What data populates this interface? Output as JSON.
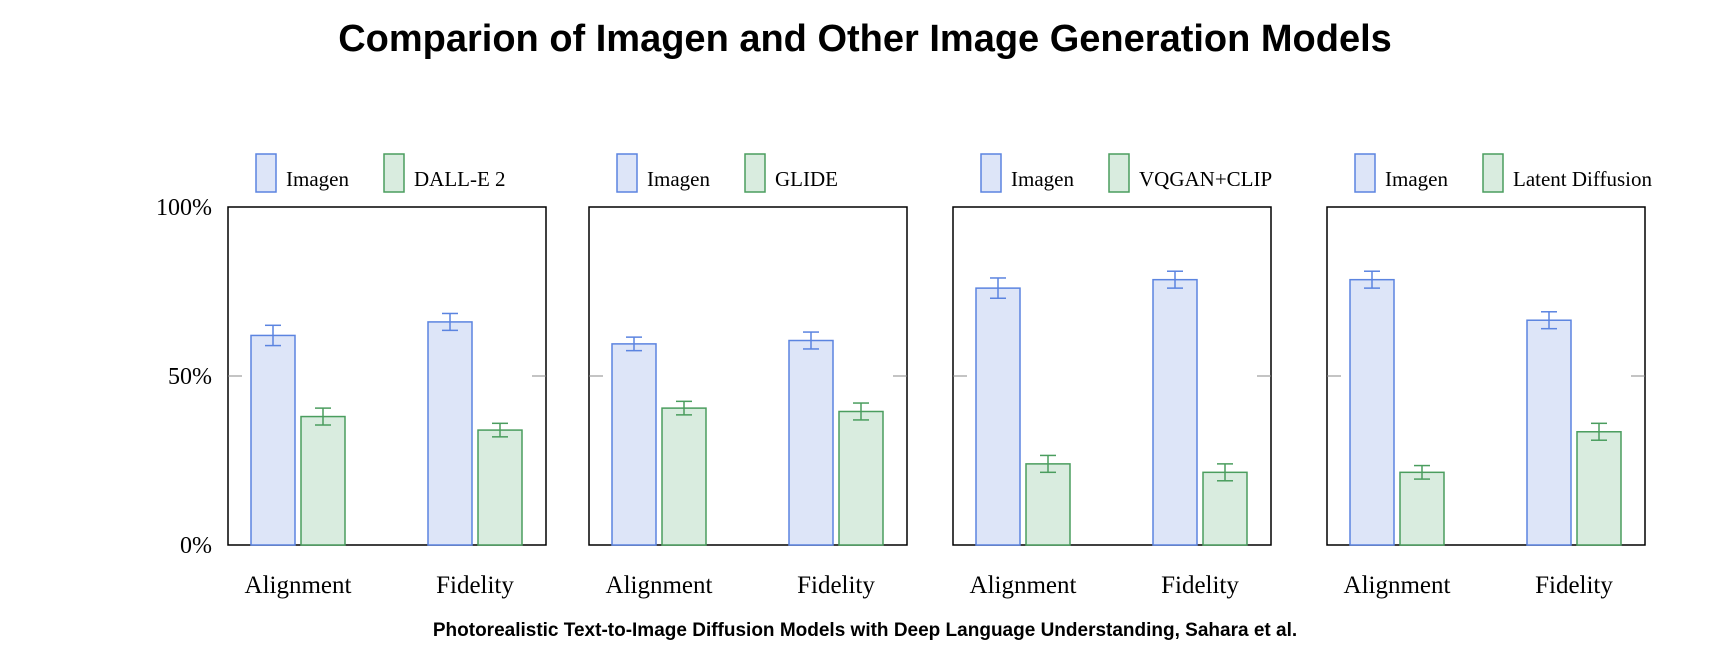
{
  "title": "Comparion of Imagen and Other Image Generation Models",
  "caption": "Photorealistic Text-to-Image Diffusion Models with Deep Language Understanding, Sahara et al.",
  "colors": {
    "imagen_fill": "#dde5f8",
    "imagen_stroke": "#5b84e0",
    "other_fill": "#d9ecdf",
    "other_stroke": "#4a9d5e"
  },
  "y_ticks": [
    "0%",
    "50%",
    "100%"
  ],
  "chart_data": [
    {
      "type": "bar",
      "categories": [
        "Alignment",
        "Fidelity"
      ],
      "ylim": [
        0,
        100
      ],
      "legend": "top",
      "series": [
        {
          "name": "Imagen",
          "values": [
            62,
            66
          ],
          "errors": [
            3,
            2.5
          ]
        },
        {
          "name": "DALL-E 2",
          "values": [
            38,
            34
          ],
          "errors": [
            2.5,
            2
          ]
        }
      ]
    },
    {
      "type": "bar",
      "categories": [
        "Alignment",
        "Fidelity"
      ],
      "ylim": [
        0,
        100
      ],
      "legend": "top",
      "series": [
        {
          "name": "Imagen",
          "values": [
            59.5,
            60.5
          ],
          "errors": [
            2,
            2.5
          ]
        },
        {
          "name": "GLIDE",
          "values": [
            40.5,
            39.5
          ],
          "errors": [
            2,
            2.5
          ]
        }
      ]
    },
    {
      "type": "bar",
      "categories": [
        "Alignment",
        "Fidelity"
      ],
      "ylim": [
        0,
        100
      ],
      "legend": "top",
      "series": [
        {
          "name": "Imagen",
          "values": [
            76,
            78.5
          ],
          "errors": [
            3,
            2.5
          ]
        },
        {
          "name": "VQGAN+CLIP",
          "values": [
            24,
            21.5
          ],
          "errors": [
            2.5,
            2.5
          ]
        }
      ]
    },
    {
      "type": "bar",
      "categories": [
        "Alignment",
        "Fidelity"
      ],
      "ylim": [
        0,
        100
      ],
      "legend": "top",
      "series": [
        {
          "name": "Imagen",
          "values": [
            78.5,
            66.5
          ],
          "errors": [
            2.5,
            2.5
          ]
        },
        {
          "name": "Latent Diffusion",
          "values": [
            21.5,
            33.5
          ],
          "errors": [
            2,
            2.5
          ]
        }
      ]
    }
  ]
}
